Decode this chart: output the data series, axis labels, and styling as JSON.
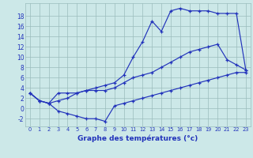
{
  "xlabel": "Graphe des températures (°c)",
  "background_color": "#cce8e8",
  "grid_color": "#9bbcbc",
  "line_color": "#2233bb",
  "hours": [
    0,
    1,
    2,
    3,
    4,
    5,
    6,
    7,
    8,
    9,
    10,
    11,
    12,
    13,
    14,
    15,
    16,
    17,
    18,
    19,
    20,
    21,
    22,
    23
  ],
  "temp_high": [
    3.0,
    1.5,
    1.0,
    1.5,
    2.0,
    3.0,
    3.5,
    4.0,
    4.5,
    5.0,
    6.5,
    10.0,
    13.0,
    17.0,
    15.0,
    19.0,
    19.5,
    19.0,
    19.0,
    19.0,
    18.5,
    18.5,
    18.5,
    7.5
  ],
  "temp_low": [
    3.0,
    1.5,
    1.0,
    -0.5,
    -1.0,
    -1.5,
    -2.0,
    -2.0,
    -2.5,
    0.5,
    1.0,
    1.5,
    2.0,
    2.5,
    3.0,
    3.5,
    4.0,
    4.5,
    5.0,
    5.5,
    6.0,
    6.5,
    7.0,
    7.0
  ],
  "temp_mid": [
    3.0,
    1.5,
    1.0,
    3.0,
    3.0,
    3.0,
    3.5,
    3.5,
    3.5,
    4.0,
    5.0,
    6.0,
    6.5,
    7.0,
    8.0,
    9.0,
    10.0,
    11.0,
    11.5,
    12.0,
    12.5,
    9.5,
    8.5,
    7.5
  ],
  "ylim": [
    -3.5,
    20.5
  ],
  "yticks": [
    -2,
    0,
    2,
    4,
    6,
    8,
    10,
    12,
    14,
    16,
    18
  ],
  "xtick_labels": [
    "0",
    "1",
    "2",
    "3",
    "4",
    "5",
    "6",
    "7",
    "8",
    "9",
    "10",
    "11",
    "12",
    "13",
    "14",
    "15",
    "16",
    "17",
    "18",
    "19",
    "20",
    "21",
    "22",
    "23"
  ]
}
